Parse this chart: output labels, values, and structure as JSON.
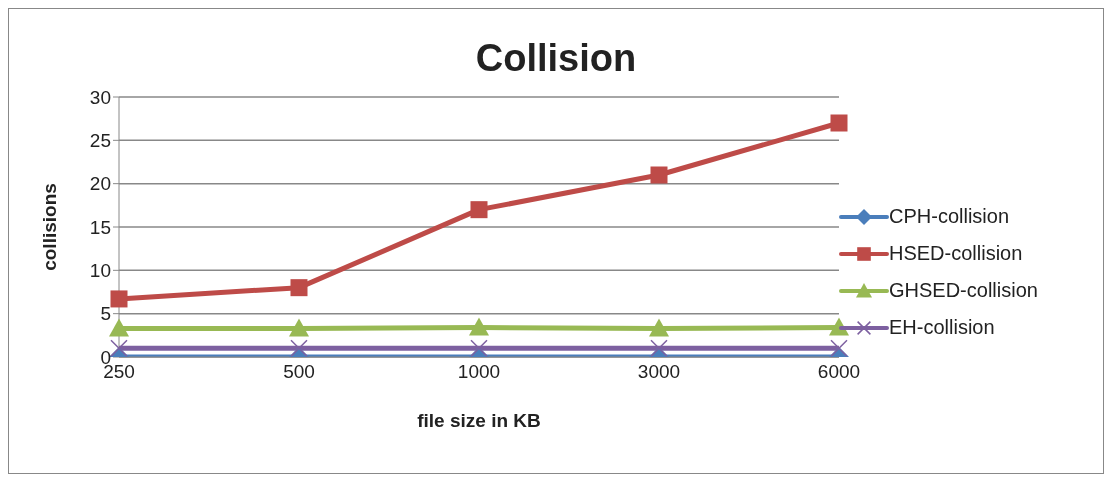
{
  "chart_data": {
    "type": "line",
    "title": "Collision",
    "xlabel": "file size in KB",
    "ylabel": "collisions",
    "categories": [
      "250",
      "500",
      "1000",
      "3000",
      "6000"
    ],
    "series": [
      {
        "name": "CPH-collision",
        "color": "#4a7ebb",
        "marker": "diamond",
        "values": [
          0,
          0,
          0,
          0,
          0
        ]
      },
      {
        "name": "HSED-collision",
        "color": "#be4b48",
        "marker": "square",
        "values": [
          6.7,
          8,
          17,
          21,
          27
        ]
      },
      {
        "name": "GHSED-collision",
        "color": "#98b954",
        "marker": "triangle",
        "values": [
          3.3,
          3.3,
          3.4,
          3.3,
          3.4
        ]
      },
      {
        "name": "EH-collision",
        "color": "#7d60a0",
        "marker": "cross",
        "values": [
          1,
          1,
          1,
          1,
          1
        ]
      }
    ],
    "ylim": [
      0,
      30
    ],
    "yticks": [
      0,
      5,
      10,
      15,
      20,
      25,
      30
    ],
    "grid": "y",
    "legend": "right"
  }
}
